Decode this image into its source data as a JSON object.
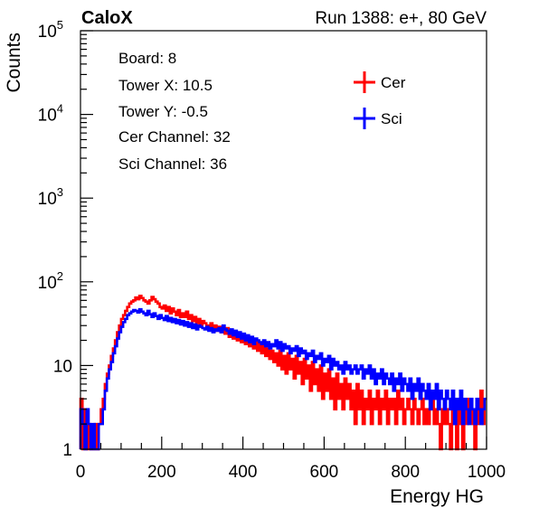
{
  "header": {
    "left_title": "CaloX",
    "right_title": "Run 1388: e+, 80 GeV"
  },
  "info": {
    "lines": [
      "Board: 8",
      "Tower X: 10.5",
      "Tower Y: -0.5",
      "Cer Channel: 32",
      "Sci Channel: 36"
    ]
  },
  "chart_data": {
    "type": "histogram",
    "xlabel": "Energy HG",
    "ylabel": "Counts",
    "xlim": [
      0,
      1000
    ],
    "ylim": [
      1,
      100000
    ],
    "yscale": "log",
    "x_ticks": [
      "0",
      "200",
      "400",
      "600",
      "800",
      "1000"
    ],
    "y_ticks": [
      {
        "value": 1,
        "base": "1",
        "exp": ""
      },
      {
        "value": 10,
        "base": "10",
        "exp": ""
      },
      {
        "value": 100,
        "base": "10",
        "exp": "2"
      },
      {
        "value": 1000,
        "base": "10",
        "exp": "3"
      },
      {
        "value": 10000,
        "base": "10",
        "exp": "4"
      },
      {
        "value": 100000,
        "base": "10",
        "exp": "5"
      }
    ],
    "legend_position": "top-right",
    "bin_width": 5,
    "series": [
      {
        "name": "Cer",
        "color": "#ff0000",
        "x": [
          0,
          5,
          10,
          15,
          20,
          25,
          30,
          35,
          40,
          45,
          50,
          55,
          60,
          65,
          70,
          75,
          80,
          85,
          90,
          95,
          100,
          105,
          110,
          115,
          120,
          125,
          130,
          135,
          140,
          145,
          150,
          155,
          160,
          165,
          170,
          175,
          180,
          185,
          190,
          195,
          200,
          205,
          210,
          215,
          220,
          225,
          230,
          235,
          240,
          245,
          250,
          255,
          260,
          265,
          270,
          275,
          280,
          285,
          290,
          295,
          300,
          305,
          310,
          315,
          320,
          325,
          330,
          335,
          340,
          345,
          350,
          355,
          360,
          365,
          370,
          375,
          380,
          385,
          390,
          395,
          400,
          405,
          410,
          415,
          420,
          425,
          430,
          435,
          440,
          445,
          450,
          455,
          460,
          465,
          470,
          475,
          480,
          485,
          490,
          495,
          500,
          505,
          510,
          515,
          520,
          525,
          530,
          535,
          540,
          545,
          550,
          555,
          560,
          565,
          570,
          575,
          580,
          585,
          590,
          595,
          600,
          605,
          610,
          615,
          620,
          625,
          630,
          635,
          640,
          645,
          650,
          655,
          660,
          665,
          670,
          675,
          680,
          685,
          690,
          695,
          700,
          705,
          710,
          715,
          720,
          725,
          730,
          735,
          740,
          745,
          750,
          755,
          760,
          765,
          770,
          775,
          780,
          785,
          790,
          795,
          800,
          805,
          810,
          815,
          820,
          825,
          830,
          835,
          840,
          845,
          850,
          855,
          860,
          865,
          870,
          875,
          880,
          885,
          890,
          895,
          900,
          905,
          910,
          915,
          920,
          925,
          930,
          935,
          940,
          945,
          950,
          955,
          960,
          965,
          970,
          975,
          980,
          985,
          990,
          995
        ],
        "values": [
          4,
          1,
          3,
          1,
          2,
          1,
          1,
          2,
          1,
          2,
          3,
          4,
          6,
          8,
          10,
          13,
          16,
          20,
          25,
          30,
          36,
          40,
          45,
          50,
          55,
          58,
          60,
          65,
          62,
          68,
          64,
          60,
          58,
          55,
          60,
          66,
          62,
          58,
          55,
          50,
          48,
          52,
          45,
          50,
          42,
          48,
          44,
          40,
          46,
          38,
          42,
          38,
          44,
          36,
          40,
          34,
          38,
          32,
          36,
          30,
          34,
          32,
          30,
          28,
          32,
          27,
          30,
          26,
          29,
          25,
          27,
          24,
          28,
          22,
          25,
          21,
          24,
          20,
          23,
          19,
          22,
          18,
          21,
          17,
          20,
          16,
          19,
          15,
          18,
          14,
          17,
          13,
          16,
          12,
          15,
          11,
          14,
          10,
          15,
          9,
          13,
          8,
          14,
          9,
          12,
          7,
          13,
          8,
          11,
          6,
          12,
          7,
          10,
          5,
          11,
          6,
          9,
          5,
          10,
          4,
          8,
          5,
          9,
          4,
          7,
          3,
          8,
          4,
          6,
          3,
          7,
          4,
          6,
          3,
          5,
          2,
          6,
          3,
          5,
          2,
          4,
          3,
          5,
          2,
          4,
          3,
          5,
          2,
          4,
          3,
          5,
          2,
          4,
          3,
          4,
          2,
          5,
          3,
          4,
          2,
          3,
          4,
          3,
          2,
          4,
          3,
          2,
          3,
          4,
          2,
          3,
          2,
          3,
          4,
          2,
          3,
          2,
          1,
          3,
          2,
          3,
          2,
          1,
          3,
          2,
          1,
          3,
          2,
          1,
          3,
          2,
          4,
          3,
          2,
          1,
          2,
          3,
          5,
          2,
          4
        ]
      },
      {
        "name": "Sci",
        "color": "#0000ff",
        "x": [
          0,
          5,
          10,
          15,
          20,
          25,
          30,
          35,
          40,
          45,
          50,
          55,
          60,
          65,
          70,
          75,
          80,
          85,
          90,
          95,
          100,
          105,
          110,
          115,
          120,
          125,
          130,
          135,
          140,
          145,
          150,
          155,
          160,
          165,
          170,
          175,
          180,
          185,
          190,
          195,
          200,
          205,
          210,
          215,
          220,
          225,
          230,
          235,
          240,
          245,
          250,
          255,
          260,
          265,
          270,
          275,
          280,
          285,
          290,
          295,
          300,
          305,
          310,
          315,
          320,
          325,
          330,
          335,
          340,
          345,
          350,
          355,
          360,
          365,
          370,
          375,
          380,
          385,
          390,
          395,
          400,
          405,
          410,
          415,
          420,
          425,
          430,
          435,
          440,
          445,
          450,
          455,
          460,
          465,
          470,
          475,
          480,
          485,
          490,
          495,
          500,
          505,
          510,
          515,
          520,
          525,
          530,
          535,
          540,
          545,
          550,
          555,
          560,
          565,
          570,
          575,
          580,
          585,
          590,
          595,
          600,
          605,
          610,
          615,
          620,
          625,
          630,
          635,
          640,
          645,
          650,
          655,
          660,
          665,
          670,
          675,
          680,
          685,
          690,
          695,
          700,
          705,
          710,
          715,
          720,
          725,
          730,
          735,
          740,
          745,
          750,
          755,
          760,
          765,
          770,
          775,
          780,
          785,
          790,
          795,
          800,
          805,
          810,
          815,
          820,
          825,
          830,
          835,
          840,
          845,
          850,
          855,
          860,
          865,
          870,
          875,
          880,
          885,
          890,
          895,
          900,
          905,
          910,
          915,
          920,
          925,
          930,
          935,
          940,
          945,
          950,
          955,
          960,
          965,
          970,
          975,
          980,
          985,
          990,
          995
        ],
        "values": [
          3,
          2,
          1,
          3,
          2,
          1,
          2,
          1,
          1,
          2,
          2,
          3,
          5,
          7,
          9,
          11,
          14,
          17,
          21,
          25,
          29,
          33,
          36,
          40,
          42,
          44,
          46,
          45,
          43,
          47,
          44,
          42,
          40,
          45,
          41,
          38,
          42,
          39,
          36,
          40,
          37,
          35,
          39,
          34,
          37,
          33,
          36,
          32,
          35,
          31,
          34,
          30,
          33,
          29,
          32,
          28,
          31,
          27,
          30,
          29,
          28,
          27,
          29,
          26,
          28,
          25,
          27,
          26,
          28,
          25,
          30,
          27,
          26,
          24,
          27,
          23,
          26,
          22,
          25,
          21,
          24,
          20,
          23,
          19,
          22,
          18,
          21,
          20,
          19,
          18,
          20,
          17,
          19,
          16,
          18,
          17,
          20,
          16,
          19,
          15,
          18,
          16,
          17,
          14,
          16,
          15,
          17,
          13,
          16,
          14,
          15,
          12,
          14,
          13,
          15,
          11,
          13,
          12,
          14,
          10,
          12,
          11,
          13,
          9,
          12,
          10,
          11,
          9,
          10,
          8,
          11,
          9,
          10,
          8,
          9,
          10,
          8,
          9,
          10,
          7,
          9,
          8,
          10,
          7,
          9,
          6,
          8,
          7,
          9,
          6,
          8,
          7,
          6,
          8,
          5,
          7,
          6,
          8,
          5,
          7,
          6,
          5,
          7,
          4,
          6,
          5,
          7,
          4,
          6,
          5,
          4,
          6,
          3,
          5,
          4,
          6,
          3,
          5,
          4,
          3,
          5,
          4,
          3,
          5,
          2,
          4,
          3,
          5,
          2,
          4,
          3,
          2,
          4,
          3,
          2,
          4,
          3,
          2,
          3,
          4
        ]
      }
    ]
  }
}
